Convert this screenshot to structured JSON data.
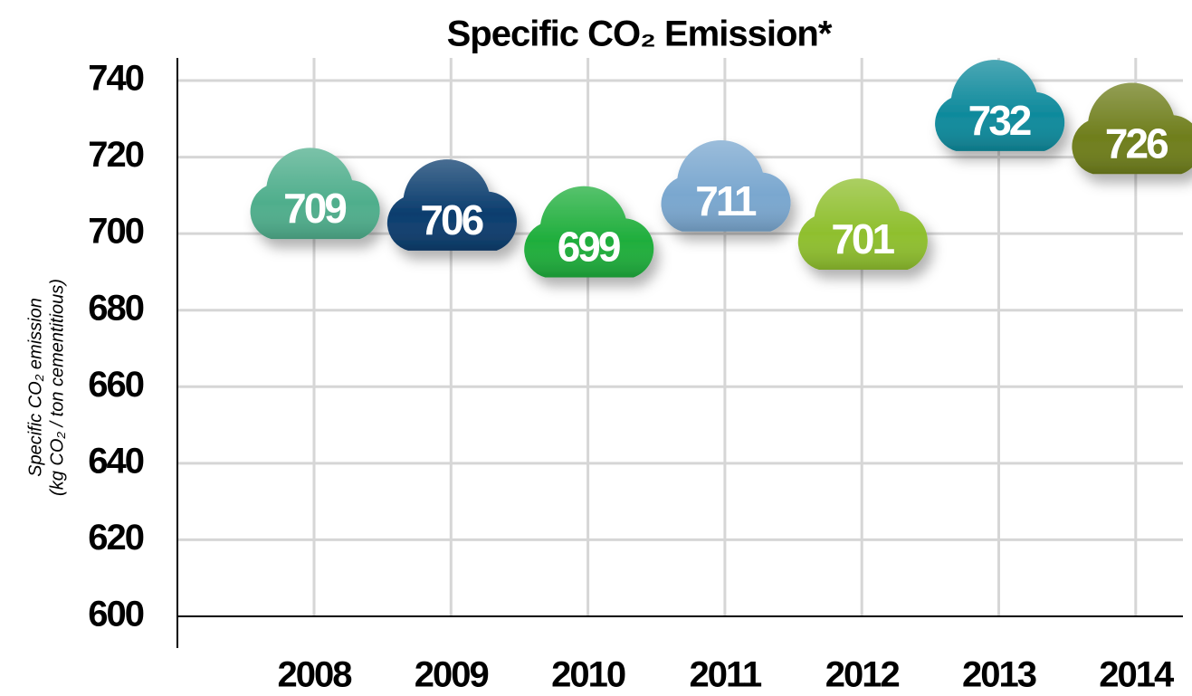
{
  "chart_data": {
    "type": "cloud",
    "title": "Specific CO₂ Emission*",
    "y_label": [
      "Specific CO₂ emission",
      "(kg CO₂ / ton cementitious)"
    ],
    "categories": [
      "2008",
      "2009",
      "2010",
      "2011",
      "2012",
      "2013",
      "2014"
    ],
    "values": [
      709,
      706,
      699,
      711,
      701,
      732,
      726
    ],
    "colors": [
      "#4fae8c",
      "#0b3d6e",
      "#1fae3c",
      "#7aa7cf",
      "#8fbf2e",
      "#0f8a9c",
      "#6f7e1c"
    ],
    "ylim": [
      600,
      740
    ],
    "yticks": [
      600,
      620,
      640,
      660,
      680,
      700,
      720,
      740
    ],
    "grid": true
  }
}
